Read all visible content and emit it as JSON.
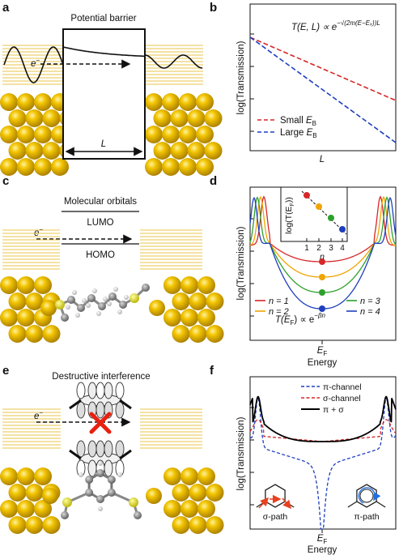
{
  "panels": {
    "a": {
      "letter": "a",
      "title": "Potential barrier",
      "electron": "e",
      "electron_sup": "−",
      "width_label": "L"
    },
    "b": {
      "letter": "b",
      "formula_lhs": "T(E, L) ∝ e",
      "formula_exp": "−√(2m(E−Eₓ))L",
      "ylabel": "log(Transmission)",
      "xlabel": "L",
      "legend": [
        {
          "name_prefix": "Small ",
          "name_var": "E",
          "name_sub": "B",
          "color": "#d62728"
        },
        {
          "name_prefix": "Large ",
          "name_var": "E",
          "name_sub": "B",
          "color": "#1f3fbf"
        }
      ]
    },
    "c": {
      "letter": "c",
      "title": "Molecular orbitals",
      "lumo": "LUMO",
      "homo": "HOMO",
      "electron": "e",
      "electron_sup": "−"
    },
    "d": {
      "letter": "d",
      "ylabel": "log(Transmission)",
      "xlabel": "Energy",
      "xtick": "E",
      "xtick_sub": "F",
      "inset_ylabel": "log(T(E",
      "inset_ylabel_sub": "F",
      "inset_ylabel_end": "))",
      "inset_xlabel": "n",
      "inset_xticks": [
        "1",
        "2",
        "3",
        "4"
      ],
      "formula_lhs": "T(E",
      "formula_sub": "F",
      "formula_mid": ") ∝ e",
      "formula_exp": "−βn",
      "legend": [
        {
          "n": "n = 1",
          "color": "#d62728"
        },
        {
          "n": "n = 2",
          "color": "#f0a500"
        },
        {
          "n": "n = 3",
          "color": "#2ca02c"
        },
        {
          "n": "n = 4",
          "color": "#1f3fbf"
        }
      ]
    },
    "e": {
      "letter": "e",
      "title": "Destructive interference",
      "electron": "e",
      "electron_sup": "−"
    },
    "f": {
      "letter": "f",
      "ylabel": "log(Transmission)",
      "xlabel": "Energy",
      "xtick": "E",
      "xtick_sub": "F",
      "legend": [
        {
          "name": "π-channel",
          "color": "#1f3fbf",
          "style": "dashed"
        },
        {
          "name": "σ-channel",
          "color": "#d62728",
          "style": "dashed"
        },
        {
          "name": "π + σ",
          "color": "#000000",
          "style": "solid"
        }
      ],
      "sigma_path": "σ-path",
      "pi_path": "π-path"
    }
  },
  "colors": {
    "gold": "#e8b800",
    "gold_dark": "#a07a00",
    "electrode_line": "#e8c64a"
  }
}
